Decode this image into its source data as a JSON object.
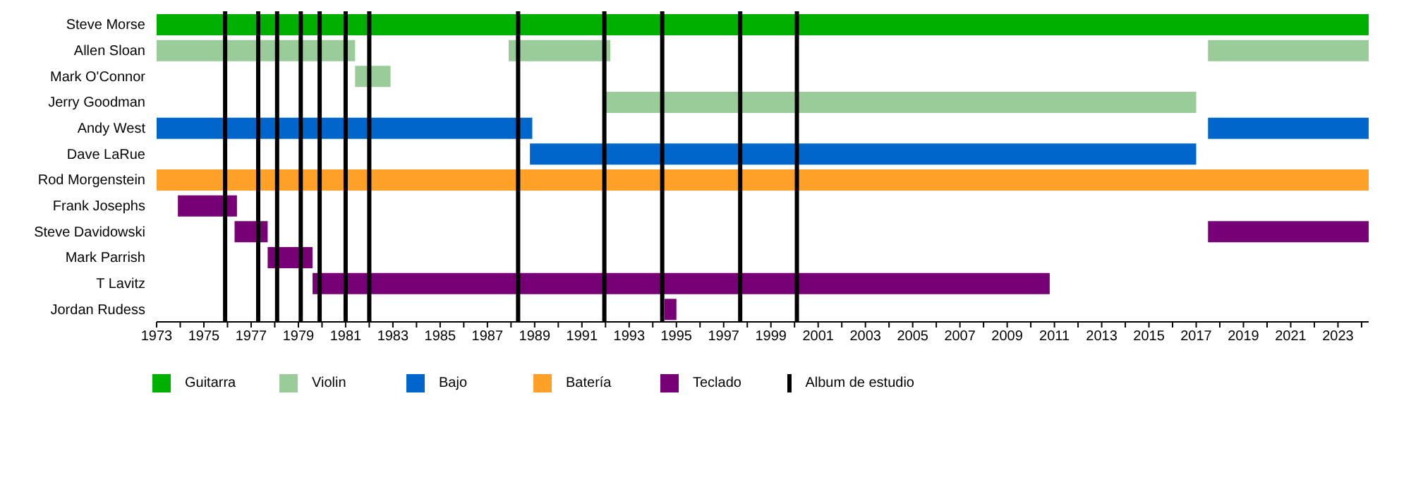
{
  "chart_data": {
    "type": "bar",
    "orientation": "horizontal",
    "legend": "bottom",
    "categories": [
      "Steve Morse",
      "Allen Sloan",
      "Mark O'Connor",
      "Jerry Goodman",
      "Andy West",
      "Dave LaRue",
      "Rod Morgenstein",
      "Frank Josephs",
      "Steve Davidowski",
      "Mark Parrish",
      "T Lavitz",
      "Jordan Rudess"
    ],
    "series": [
      {
        "name": "Guitarra",
        "color": "#00b000",
        "base": [
          1973,
          null,
          null,
          null,
          null,
          null,
          null,
          null,
          null,
          null,
          null,
          null
        ],
        "values": [
          51.3,
          null,
          null,
          null,
          null,
          null,
          null,
          null,
          null,
          null,
          null,
          null
        ]
      },
      {
        "name": "Violin",
        "color": "#99cc99",
        "base": [
          null,
          1973,
          1981.4,
          1991.9,
          null,
          null,
          null,
          null,
          null,
          null,
          null,
          null
        ],
        "values": [
          null,
          8.4,
          1.5,
          25.1,
          null,
          null,
          null,
          null,
          null,
          null,
          null,
          null
        ]
      },
      {
        "color": "#99cc99",
        "base": [
          null,
          1987.9,
          null,
          null,
          null,
          null,
          null,
          null,
          null,
          null,
          null,
          null
        ],
        "values": [
          null,
          4.3,
          null,
          null,
          null,
          null,
          null,
          null,
          null,
          null,
          null,
          null
        ]
      },
      {
        "color": "#99cc99",
        "base": [
          null,
          2017.5,
          null,
          null,
          null,
          null,
          null,
          null,
          null,
          null,
          null,
          null
        ],
        "values": [
          null,
          6.8,
          null,
          null,
          null,
          null,
          null,
          null,
          null,
          null,
          null,
          null
        ]
      },
      {
        "name": "Bajo",
        "color": "#0066cc",
        "base": [
          null,
          null,
          null,
          null,
          1973,
          1988.8,
          null,
          null,
          null,
          null,
          null,
          null
        ],
        "values": [
          null,
          null,
          null,
          null,
          15.9,
          28.2,
          null,
          null,
          null,
          null,
          null,
          null
        ]
      },
      {
        "color": "#0066cc",
        "base": [
          null,
          null,
          null,
          null,
          2017.5,
          null,
          null,
          null,
          null,
          null,
          null,
          null
        ],
        "values": [
          null,
          null,
          null,
          null,
          6.8,
          null,
          null,
          null,
          null,
          null,
          null,
          null
        ]
      },
      {
        "name": "Batería",
        "color": "#ffa028",
        "base": [
          null,
          null,
          null,
          null,
          null,
          null,
          1973,
          null,
          null,
          null,
          null,
          null
        ],
        "values": [
          null,
          null,
          null,
          null,
          null,
          null,
          51.3,
          null,
          null,
          null,
          null,
          null
        ]
      },
      {
        "name": "Teclado",
        "color": "#770077",
        "base": [
          null,
          null,
          null,
          null,
          null,
          null,
          null,
          1973.9,
          1976.3,
          1977.7,
          1979.6,
          1994.5
        ],
        "values": [
          null,
          null,
          null,
          null,
          null,
          null,
          null,
          2.5,
          1.4,
          1.9,
          31.2,
          0.5
        ]
      },
      {
        "color": "#770077",
        "base": [
          null,
          null,
          null,
          null,
          null,
          null,
          null,
          null,
          2017.5,
          null,
          null,
          null
        ],
        "values": [
          null,
          null,
          null,
          null,
          null,
          null,
          null,
          null,
          6.8,
          null,
          null,
          null
        ]
      }
    ],
    "xlim": [
      1973,
      2024.3
    ],
    "xticks": [
      1973,
      {
        "value": 1974,
        "label": null
      },
      1975,
      {
        "value": 1976,
        "label": null
      },
      1977,
      {
        "value": 1978,
        "label": null
      },
      1979,
      {
        "value": 1980,
        "label": null
      },
      1981,
      {
        "value": 1982,
        "label": null
      },
      1983,
      {
        "value": 1984,
        "label": null
      },
      1985,
      {
        "value": 1986,
        "label": null
      },
      1987,
      {
        "value": 1988,
        "label": null
      },
      1989,
      {
        "value": 1990,
        "label": null
      },
      1991,
      {
        "value": 1992,
        "label": null
      },
      1993,
      {
        "value": 1994,
        "label": null
      },
      1995,
      {
        "value": 1996,
        "label": null
      },
      1997,
      {
        "value": 1998,
        "label": null
      },
      1999,
      {
        "value": 2000,
        "label": null
      },
      2001,
      {
        "value": 2002,
        "label": null
      },
      2003,
      {
        "value": 2004,
        "label": null
      },
      2005,
      {
        "value": 2006,
        "label": null
      },
      2007,
      {
        "value": 2008,
        "label": null
      },
      2009,
      {
        "value": 2010,
        "label": null
      },
      2011,
      {
        "value": 2012,
        "label": null
      },
      2013,
      {
        "value": 2014,
        "label": null
      },
      2015,
      {
        "value": 2016,
        "label": null
      },
      2017,
      {
        "value": 2018,
        "label": null
      },
      2019,
      {
        "value": 2020,
        "label": null
      },
      2021,
      {
        "value": 2022,
        "label": null
      },
      2023,
      {
        "value": 2024,
        "label": null
      }
    ],
    "ref_lines": [
      {
        "axis": "x",
        "value": 1975.9,
        "label": "Album de estudio",
        "color": "#000000"
      },
      {
        "axis": "x",
        "value": 1977.3,
        "color": "#000000"
      },
      {
        "axis": "x",
        "value": 1978.1,
        "color": "#000000"
      },
      {
        "axis": "x",
        "value": 1979.1,
        "color": "#000000"
      },
      {
        "axis": "x",
        "value": 1979.9,
        "color": "#000000"
      },
      {
        "axis": "x",
        "value": 1981.0,
        "color": "#000000"
      },
      {
        "axis": "x",
        "value": 1982.0,
        "color": "#000000"
      },
      {
        "axis": "x",
        "value": 1988.3,
        "color": "#000000"
      },
      {
        "axis": "x",
        "value": 1991.95,
        "color": "#000000"
      },
      {
        "axis": "x",
        "value": 1994.4,
        "color": "#000000"
      },
      {
        "axis": "x",
        "value": 1997.7,
        "color": "#000000"
      },
      {
        "axis": "x",
        "value": 2000.1,
        "color": "#000000"
      }
    ]
  }
}
